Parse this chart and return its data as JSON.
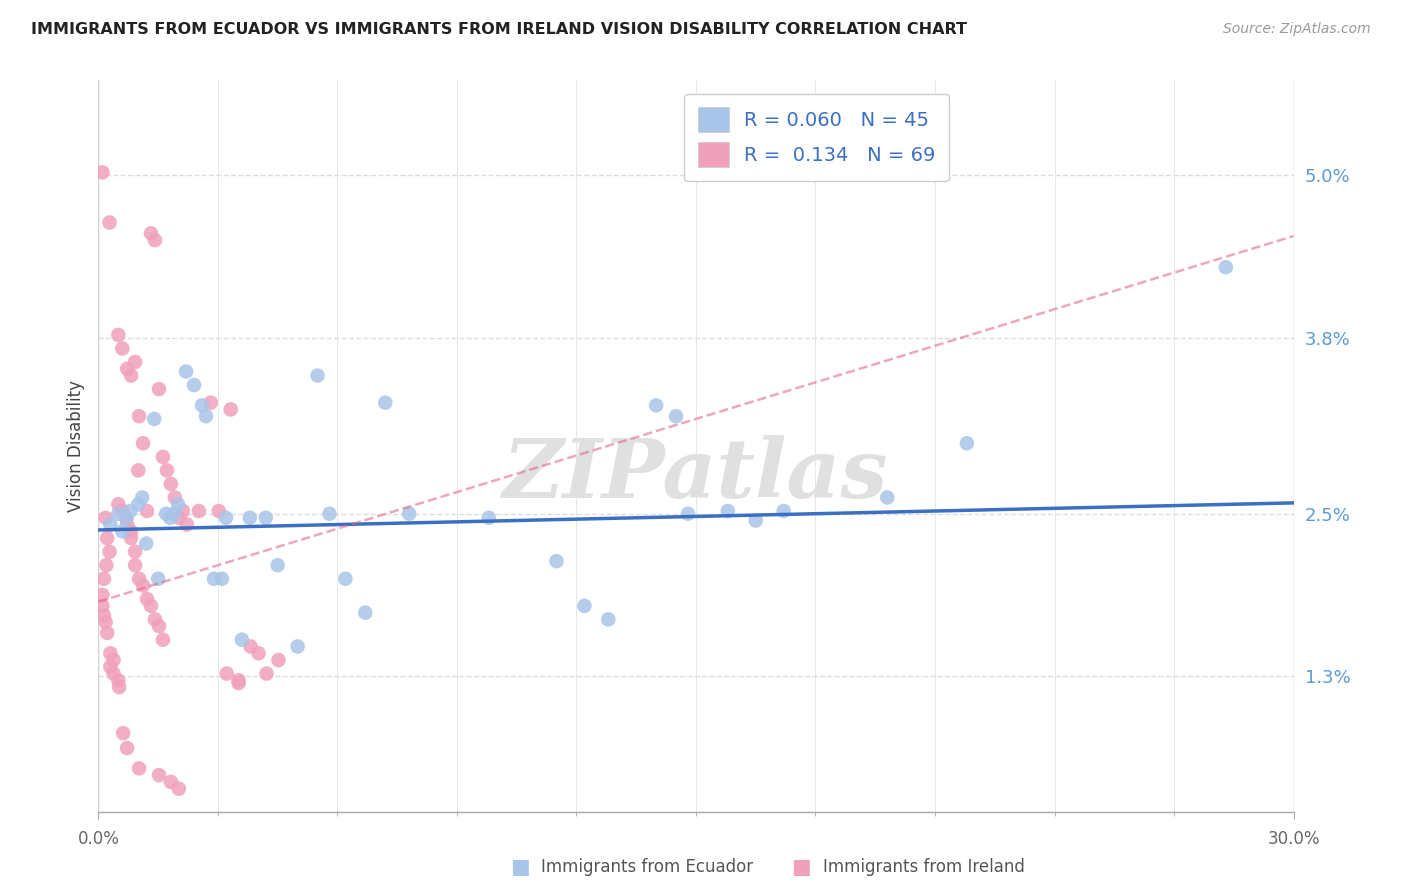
{
  "title": "IMMIGRANTS FROM ECUADOR VS IMMIGRANTS FROM IRELAND VISION DISABILITY CORRELATION CHART",
  "source": "Source: ZipAtlas.com",
  "ylabel": "Vision Disability",
  "ytick_values": [
    1.3,
    2.5,
    3.8,
    5.0
  ],
  "xlim": [
    0.0,
    30.0
  ],
  "ylim": [
    0.3,
    5.7
  ],
  "ecuador_R": "0.060",
  "ecuador_N": "45",
  "ireland_R": "0.134",
  "ireland_N": "69",
  "ecuador_color": "#a8c4e8",
  "ireland_color": "#f0a0ba",
  "ecuador_line_color": "#3a6fc4",
  "ireland_line_color": "#e06080",
  "ecuador_line": [
    [
      0.0,
      2.38
    ],
    [
      30.0,
      2.58
    ]
  ],
  "ireland_line": [
    [
      0.0,
      1.85
    ],
    [
      30.0,
      4.55
    ]
  ],
  "ecuador_scatter": [
    [
      0.3,
      2.42
    ],
    [
      0.5,
      2.5
    ],
    [
      0.6,
      2.37
    ],
    [
      0.7,
      2.47
    ],
    [
      0.8,
      2.52
    ],
    [
      1.0,
      2.57
    ],
    [
      1.1,
      2.62
    ],
    [
      1.2,
      2.28
    ],
    [
      1.4,
      3.2
    ],
    [
      1.5,
      2.02
    ],
    [
      1.7,
      2.5
    ],
    [
      1.8,
      2.47
    ],
    [
      1.9,
      2.5
    ],
    [
      2.0,
      2.57
    ],
    [
      2.2,
      3.55
    ],
    [
      2.4,
      3.45
    ],
    [
      2.6,
      3.3
    ],
    [
      2.7,
      3.22
    ],
    [
      2.9,
      2.02
    ],
    [
      3.1,
      2.02
    ],
    [
      3.2,
      2.47
    ],
    [
      3.6,
      1.57
    ],
    [
      3.8,
      2.47
    ],
    [
      4.2,
      2.47
    ],
    [
      4.5,
      2.12
    ],
    [
      5.0,
      1.52
    ],
    [
      5.5,
      3.52
    ],
    [
      5.8,
      2.5
    ],
    [
      6.2,
      2.02
    ],
    [
      6.7,
      1.77
    ],
    [
      7.2,
      3.32
    ],
    [
      7.8,
      2.5
    ],
    [
      9.8,
      2.47
    ],
    [
      12.2,
      1.82
    ],
    [
      12.8,
      1.72
    ],
    [
      14.8,
      2.5
    ],
    [
      15.8,
      2.52
    ],
    [
      17.2,
      2.52
    ],
    [
      19.8,
      2.62
    ],
    [
      21.8,
      3.02
    ],
    [
      14.0,
      3.3
    ],
    [
      14.5,
      3.22
    ],
    [
      11.5,
      2.15
    ],
    [
      16.5,
      2.45
    ],
    [
      28.3,
      4.32
    ]
  ],
  "ireland_scatter": [
    [
      0.1,
      5.02
    ],
    [
      0.28,
      4.65
    ],
    [
      0.5,
      3.82
    ],
    [
      0.6,
      3.72
    ],
    [
      0.72,
      3.57
    ],
    [
      0.82,
      3.52
    ],
    [
      0.92,
      3.62
    ],
    [
      1.02,
      3.22
    ],
    [
      1.0,
      2.82
    ],
    [
      1.12,
      3.02
    ],
    [
      1.22,
      2.52
    ],
    [
      1.32,
      4.57
    ],
    [
      1.42,
      4.52
    ],
    [
      1.52,
      3.42
    ],
    [
      1.62,
      2.92
    ],
    [
      1.72,
      2.82
    ],
    [
      1.82,
      2.72
    ],
    [
      1.92,
      2.62
    ],
    [
      0.18,
      2.47
    ],
    [
      0.22,
      2.32
    ],
    [
      0.28,
      2.22
    ],
    [
      0.2,
      2.12
    ],
    [
      0.14,
      2.02
    ],
    [
      0.1,
      1.9
    ],
    [
      0.1,
      1.82
    ],
    [
      0.14,
      1.75
    ],
    [
      0.18,
      1.7
    ],
    [
      0.22,
      1.62
    ],
    [
      0.3,
      1.47
    ],
    [
      0.38,
      1.42
    ],
    [
      0.3,
      1.37
    ],
    [
      0.38,
      1.32
    ],
    [
      0.5,
      1.27
    ],
    [
      0.52,
      1.22
    ],
    [
      0.5,
      2.57
    ],
    [
      0.6,
      2.52
    ],
    [
      0.7,
      2.47
    ],
    [
      0.72,
      2.42
    ],
    [
      0.82,
      2.37
    ],
    [
      0.82,
      2.32
    ],
    [
      0.92,
      2.22
    ],
    [
      0.92,
      2.12
    ],
    [
      1.02,
      2.02
    ],
    [
      1.12,
      1.97
    ],
    [
      1.22,
      1.87
    ],
    [
      1.32,
      1.82
    ],
    [
      1.42,
      1.72
    ],
    [
      1.52,
      1.67
    ],
    [
      1.62,
      1.57
    ],
    [
      2.02,
      2.47
    ],
    [
      2.12,
      2.52
    ],
    [
      2.22,
      2.42
    ],
    [
      2.52,
      2.52
    ],
    [
      3.02,
      2.52
    ],
    [
      3.22,
      1.32
    ],
    [
      3.52,
      1.27
    ],
    [
      3.82,
      1.52
    ],
    [
      4.02,
      1.47
    ],
    [
      4.52,
      1.42
    ],
    [
      2.82,
      3.32
    ],
    [
      3.32,
      3.27
    ],
    [
      0.62,
      0.88
    ],
    [
      0.72,
      0.77
    ],
    [
      1.02,
      0.62
    ],
    [
      1.52,
      0.57
    ],
    [
      1.82,
      0.52
    ],
    [
      2.02,
      0.47
    ],
    [
      3.52,
      1.25
    ],
    [
      4.22,
      1.32
    ]
  ],
  "watermark": "ZIPatlas",
  "background_color": "#ffffff",
  "grid_color": "#dddddd"
}
